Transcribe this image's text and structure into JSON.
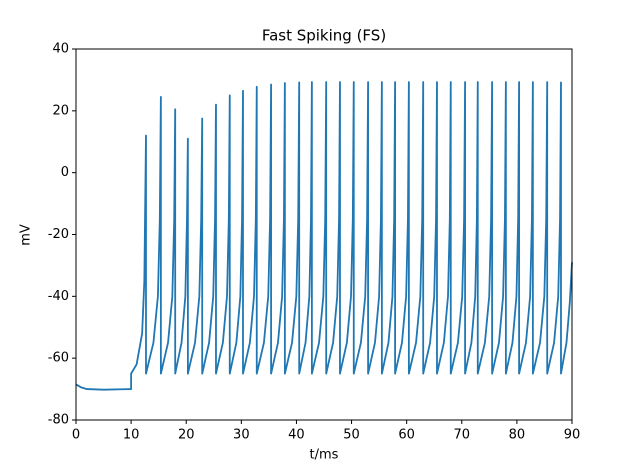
{
  "chart_data": {
    "type": "line",
    "title": "Fast Spiking (FS)",
    "x_label": "t/ms",
    "y_label": "mV",
    "xlim": [
      0,
      90
    ],
    "ylim": [
      -80,
      40
    ],
    "xticks": [
      0,
      10,
      20,
      30,
      40,
      50,
      60,
      70,
      80,
      90
    ],
    "yticks": [
      -80,
      -60,
      -40,
      -20,
      0,
      20,
      40
    ],
    "series": [
      {
        "color": "#1f77b4",
        "x": [
          0,
          1,
          2,
          5,
          10,
          10,
          11,
          12,
          12.4,
          12.7,
          12.7,
          14.05,
          14.86,
          15.21,
          15.4,
          15.4,
          16.7,
          17.48,
          17.82,
          18.0,
          18.0,
          19.15,
          19.84,
          20.14,
          20.3,
          20.3,
          21.6,
          22.38,
          22.72,
          22.9,
          22.9,
          24.15,
          24.9,
          25.23,
          25.4,
          25.4,
          26.65,
          27.4,
          27.73,
          27.9,
          27.9,
          29.1,
          29.82,
          30.13,
          30.3,
          30.3,
          31.55,
          32.3,
          32.63,
          32.8,
          32.8,
          34.1,
          34.88,
          35.22,
          35.4,
          35.4,
          36.65,
          37.4,
          37.73,
          37.9,
          37.9,
          39.2,
          39.98,
          40.32,
          40.5,
          40.5,
          41.65,
          42.34,
          42.64,
          42.8,
          42.8,
          44.1,
          44.88,
          45.22,
          45.4,
          45.4,
          46.65,
          47.4,
          47.73,
          47.9,
          47.9,
          49.15,
          49.9,
          50.23,
          50.4,
          50.4,
          51.7,
          52.48,
          52.82,
          53.0,
          53.0,
          54.25,
          55.0,
          55.33,
          55.5,
          55.5,
          56.7,
          57.42,
          57.73,
          57.9,
          57.9,
          59.15,
          59.9,
          60.23,
          60.4,
          60.4,
          61.7,
          62.48,
          62.82,
          63.0,
          63.0,
          64.25,
          65.0,
          65.33,
          65.5,
          65.5,
          66.75,
          67.5,
          67.83,
          68.0,
          68.0,
          69.3,
          70.08,
          70.42,
          70.6,
          70.6,
          71.75,
          72.44,
          72.74,
          72.9,
          72.9,
          74.2,
          74.98,
          75.32,
          75.5,
          75.5,
          76.75,
          77.5,
          77.83,
          78.0,
          78.0,
          79.2,
          79.92,
          80.23,
          80.4,
          80.4,
          81.65,
          82.4,
          82.73,
          82.9,
          82.9,
          84.2,
          84.98,
          85.32,
          85.5,
          85.5,
          86.75,
          87.5,
          87.83,
          88.0,
          88.0,
          89.0,
          89.6,
          90
        ],
        "values": [
          -68.5,
          -69.5,
          -70,
          -70.2,
          -70,
          -65,
          -62,
          -52,
          -35,
          12,
          -65,
          -55,
          -40,
          -15,
          24.5,
          -65,
          -55,
          -40,
          -15,
          20.5,
          -65,
          -55,
          -40,
          -15,
          11,
          -65,
          -55,
          -40,
          -15,
          17.5,
          -65,
          -55,
          -40,
          -15,
          22,
          -65,
          -55,
          -40,
          -15,
          25,
          -65,
          -55,
          -40,
          -15,
          26.5,
          -65,
          -55,
          -40,
          -15,
          27.8,
          -65,
          -55,
          -40,
          -15,
          28.5,
          -65,
          -55,
          -40,
          -15,
          29,
          -65,
          -55,
          -40,
          -15,
          29.2,
          -65,
          -55,
          -40,
          -15,
          29.3,
          -65,
          -55,
          -40,
          -15,
          29.3,
          -65,
          -55,
          -40,
          -15,
          29.3,
          -65,
          -55,
          -40,
          -15,
          29.3,
          -65,
          -55,
          -40,
          -15,
          29.3,
          -65,
          -55,
          -40,
          -15,
          29.3,
          -65,
          -55,
          -40,
          -15,
          29.3,
          -65,
          -55,
          -40,
          -15,
          29.3,
          -65,
          -55,
          -40,
          -15,
          29.3,
          -65,
          -55,
          -40,
          -15,
          29.3,
          -65,
          -55,
          -40,
          -15,
          29.3,
          -65,
          -55,
          -40,
          -15,
          29.3,
          -65,
          -55,
          -40,
          -15,
          29.3,
          -65,
          -55,
          -40,
          -15,
          29.3,
          -65,
          -55,
          -40,
          -15,
          29.3,
          -65,
          -55,
          -40,
          -15,
          29.3,
          -65,
          -55,
          -40,
          -15,
          29.3,
          -65,
          -55,
          -40,
          -15,
          29.3,
          -65,
          -55,
          -40,
          -15,
          29.2,
          -65,
          -55,
          -42,
          -29
        ]
      }
    ]
  }
}
